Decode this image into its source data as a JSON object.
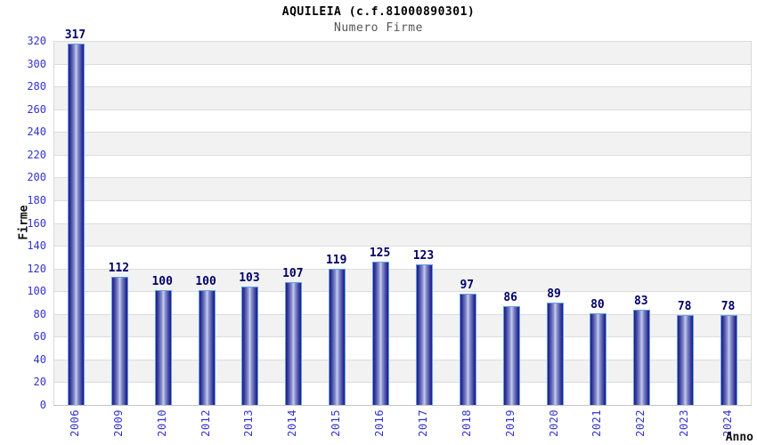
{
  "header": {
    "title": "AQUILEIA (c.f.81000890301)",
    "subtitle": "Numero Firme"
  },
  "colors": {
    "bar_edge": "#1a1a86",
    "bar_shoulder": "#3c3f9e",
    "bar_mid": "#8890cc",
    "bar_center": "#c6cdf0",
    "bar_outline": "#62a0e8",
    "value_label": "#000066",
    "tick_label": "#3333cc",
    "band_gray": "#f2f2f2",
    "band_white": "#ffffff",
    "gridline": "#dcdcdc",
    "axis_title": "#111111"
  },
  "chart_data": {
    "type": "bar",
    "title": "AQUILEIA (c.f.81000890301)",
    "subtitle": "Numero Firme",
    "xlabel": "Anno",
    "ylabel": "Firme",
    "categories": [
      "2006",
      "2009",
      "2010",
      "2012",
      "2013",
      "2014",
      "2015",
      "2016",
      "2017",
      "2018",
      "2019",
      "2020",
      "2021",
      "2022",
      "2023",
      "2024"
    ],
    "values": [
      317,
      112,
      100,
      100,
      103,
      107,
      119,
      125,
      123,
      97,
      86,
      89,
      80,
      83,
      78,
      78
    ],
    "ylim": [
      0,
      320
    ],
    "ytick_step": 20,
    "grid": "horizontal gridlines every 20 with alternating white/gray bands",
    "legend": "none",
    "bar_style": "vertical cylinder gradient, navy edges with light center, light-blue outline",
    "value_labels_shown": true
  }
}
